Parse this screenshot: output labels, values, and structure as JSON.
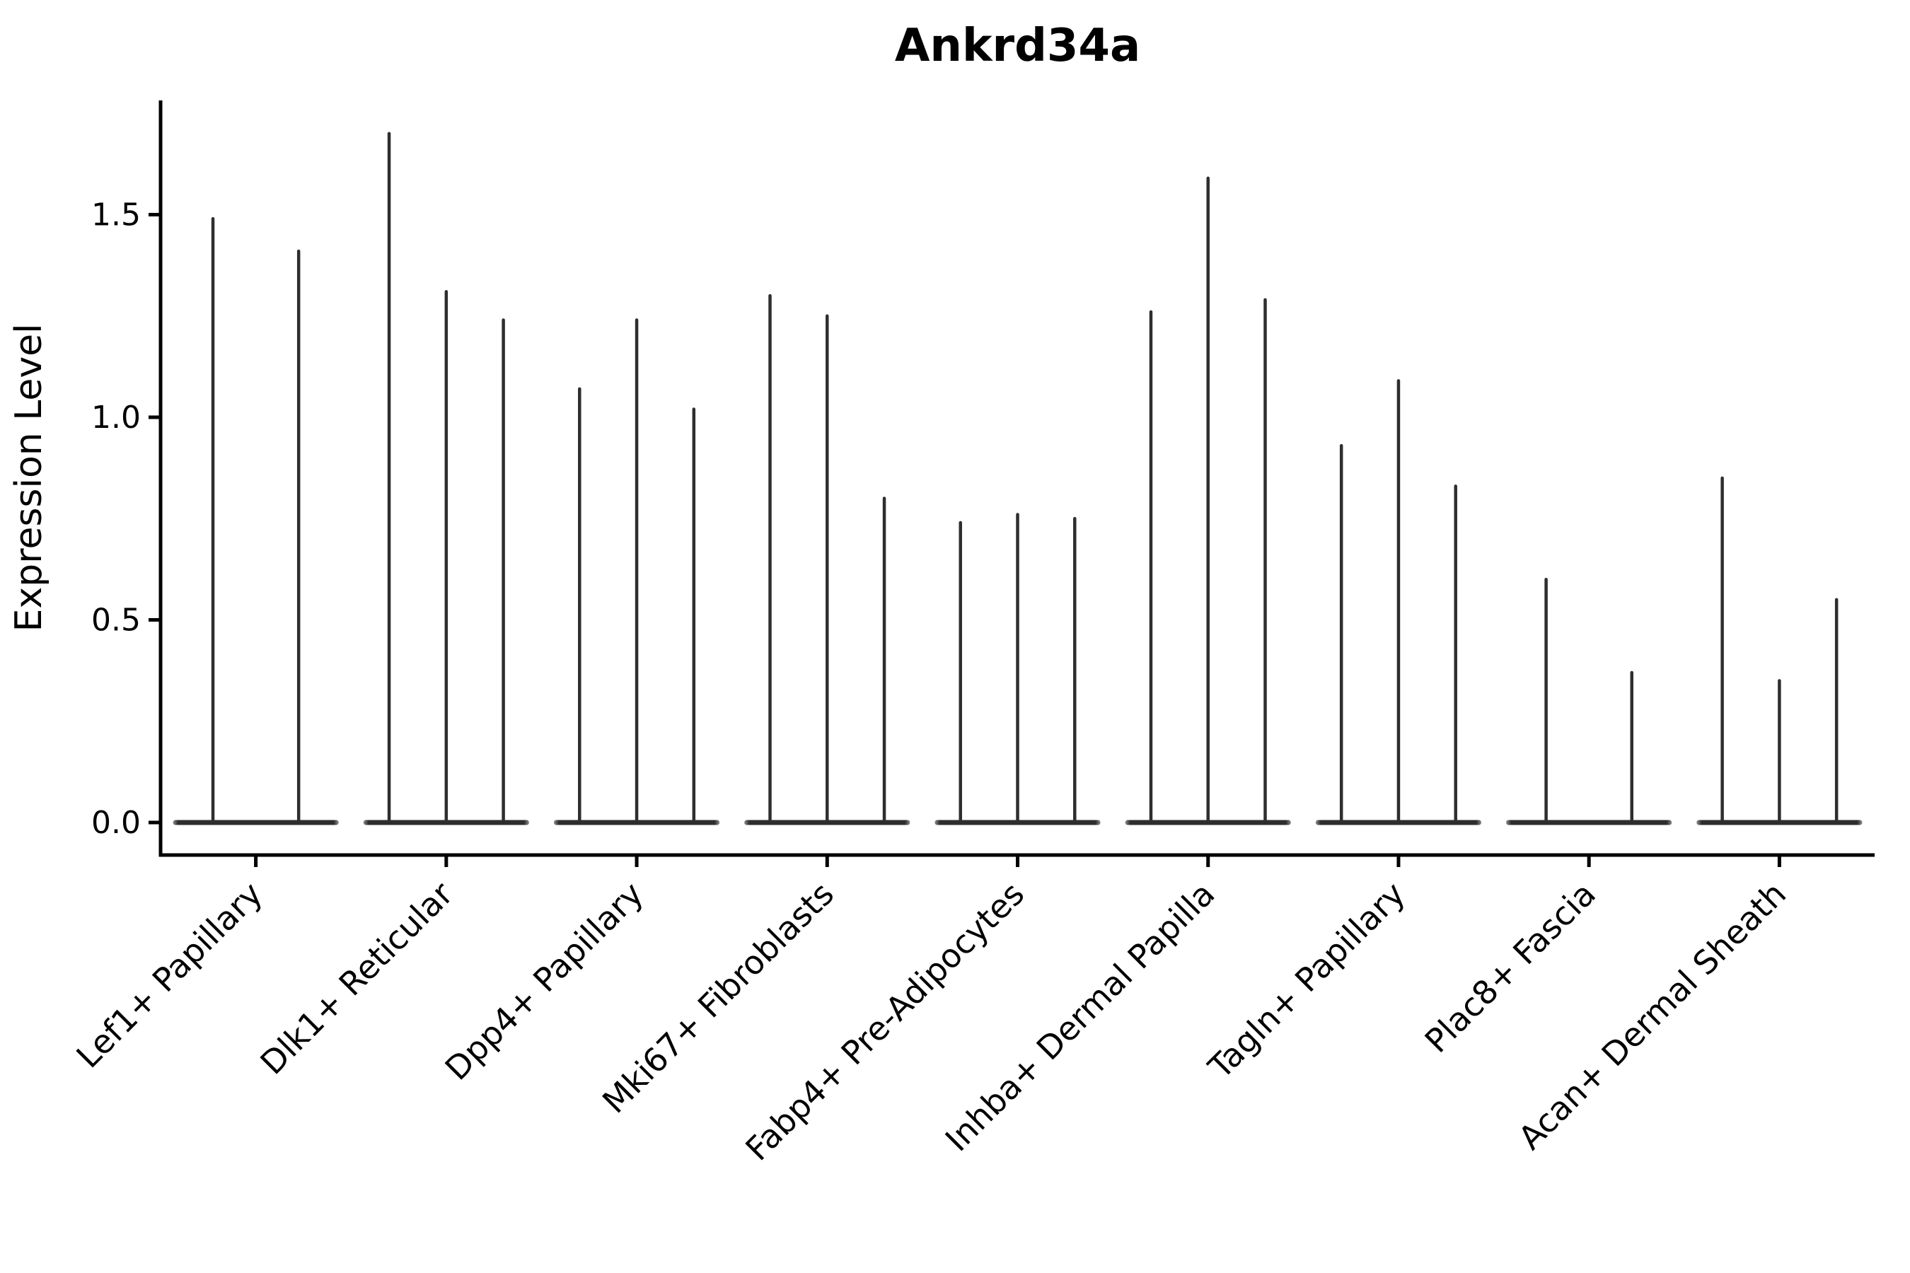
{
  "title": "Ankrd34a",
  "chart_data": {
    "type": "violin",
    "title": "Ankrd34a",
    "xlabel": "",
    "ylabel": "Expression Level",
    "ylim": [
      0,
      1.78
    ],
    "y_tick_labels": [
      "0.0",
      "0.5",
      "1.0",
      "1.5"
    ],
    "y_tick_values": [
      0.0,
      0.5,
      1.0,
      1.5
    ],
    "grid": false,
    "legend_position": "none",
    "violin_style": "thin spike at peak with flat base mass at 0",
    "colors": {
      "violin": "#2e2e2e",
      "axis": "#000000",
      "text": "#000000",
      "background": "#ffffff"
    },
    "categories": [
      "Lef1+ Papillary",
      "Dlk1+ Reticular",
      "Dpp4+ Papillary",
      "Mki67+ Fibroblasts",
      "Fabp4+ Pre-Adipocytes",
      "Inhba+ Dermal Papilla",
      "Tagln+ Papillary",
      "Plac8+ Fascia",
      "Acan+ Dermal Sheath"
    ],
    "groups": [
      {
        "label": "Lef1+ Papillary",
        "violin_max_values": [
          1.49,
          1.41
        ]
      },
      {
        "label": "Dlk1+ Reticular",
        "violin_max_values": [
          1.7,
          1.31,
          1.24
        ]
      },
      {
        "label": "Dpp4+ Papillary",
        "violin_max_values": [
          1.07,
          1.24,
          1.02
        ]
      },
      {
        "label": "Mki67+ Fibroblasts",
        "violin_max_values": [
          1.3,
          1.25,
          0.8
        ]
      },
      {
        "label": "Fabp4+ Pre-Adipocytes",
        "violin_max_values": [
          0.74,
          0.76,
          0.75
        ]
      },
      {
        "label": "Inhba+ Dermal Papilla",
        "violin_max_values": [
          1.26,
          1.59,
          1.29
        ]
      },
      {
        "label": "Tagln+ Papillary",
        "violin_max_values": [
          0.93,
          1.09,
          0.83
        ]
      },
      {
        "label": "Plac8+ Fascia",
        "violin_max_values": [
          0.6,
          0.37
        ]
      },
      {
        "label": "Acan+ Dermal Sheath",
        "violin_max_values": [
          0.85,
          0.35,
          0.55
        ]
      }
    ]
  }
}
